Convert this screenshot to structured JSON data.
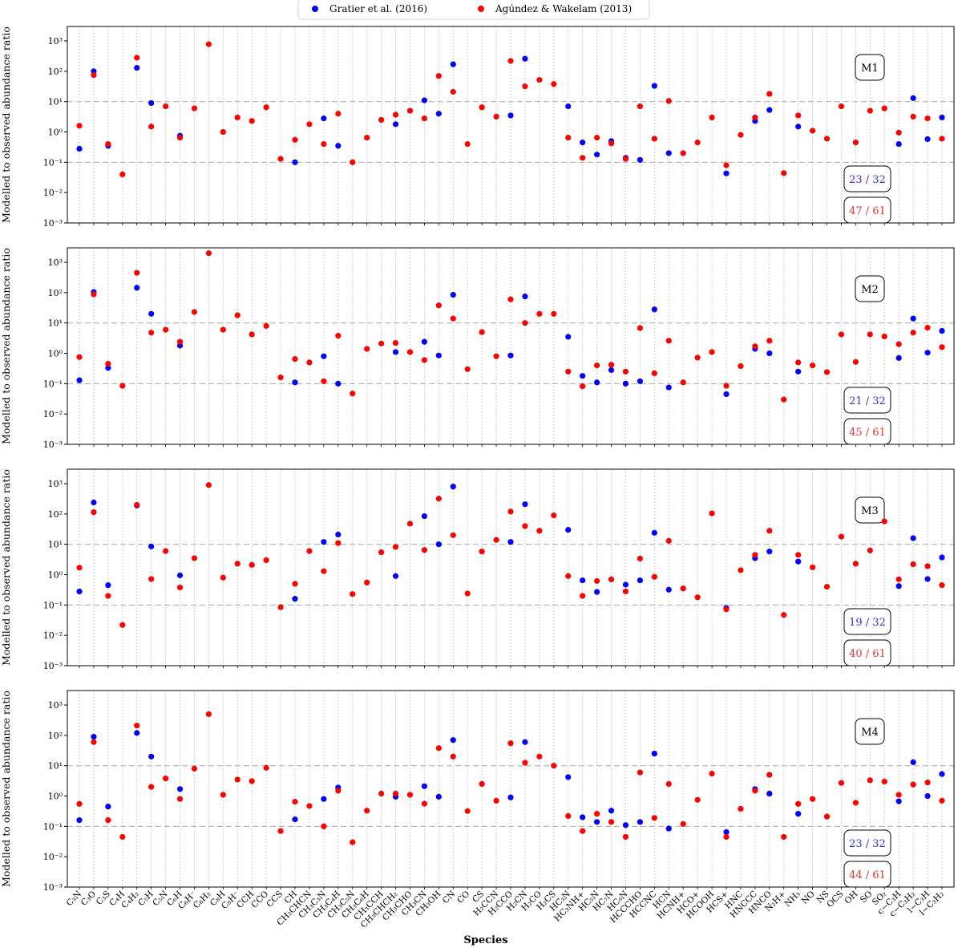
{
  "chart_data": {
    "type": "scatter",
    "xlabel": "Species",
    "ylabel": "Modelled to observed abundance ratio",
    "yscale": "log",
    "ylim": [
      0.001,
      3000
    ],
    "yticks": [
      0.001,
      0.01,
      0.1,
      1,
      10,
      100,
      1000
    ],
    "yticklabels": [
      "10⁻³",
      "10⁻²",
      "10⁻¹",
      "10⁰",
      "10¹",
      "10²",
      "10³"
    ],
    "reference_lines": [
      0.1,
      10
    ],
    "grid": "vertical dotted",
    "legend": {
      "position": "top-center",
      "entries": [
        {
          "label": "Gratier et al. (2016)",
          "color": "#0000ff"
        },
        {
          "label": "Agúndez & Wakelam (2013)",
          "color": "#ff0000"
        }
      ]
    },
    "colors": {
      "gratier": "#0000ff",
      "agundez": "#ff0000",
      "blue_text": "#3333cc",
      "red_text": "#e63333"
    },
    "categories": [
      "C₃N",
      "C₃O",
      "C₃S",
      "C₄H",
      "C₄H₂",
      "C₅H",
      "C₅N",
      "C₆H",
      "C₆H⁻",
      "C₆H₂",
      "C₈H",
      "C₈H⁻",
      "CCH",
      "CCO",
      "CCS",
      "CH",
      "CH₂CHCN",
      "CH₃C₃N",
      "CH₃C₄H",
      "CH₃C₅N",
      "CH₃C₆H",
      "CH₃CCH",
      "CH₃CHCH₂",
      "CH₃CHO",
      "CH₃CN",
      "CH₃OH",
      "CN",
      "CO",
      "CS",
      "H₂CCN",
      "H₂CCO",
      "H₂CN",
      "H₂CO",
      "H₂CS",
      "HC₃N",
      "HC₃NH+",
      "HC₅N",
      "HC₇N",
      "HC₉N",
      "HCCCHO",
      "HCCNC",
      "HCN",
      "HCNH+",
      "HCO+",
      "HCOOH",
      "HCS+",
      "HNC",
      "HNCCC",
      "HNCO",
      "N₂H+",
      "NH₃",
      "NO",
      "NS",
      "OCS",
      "OH",
      "SO",
      "SO₂",
      "c−C₃H",
      "c−C₃H₂",
      "l−C₃H",
      "l−C₃H₂"
    ],
    "panels": [
      {
        "label": "M1",
        "gratier_count": "23 / 32",
        "agundez_count": "47 / 61",
        "gratier": [
          0.28,
          100,
          0.35,
          null,
          130,
          9,
          null,
          0.75,
          null,
          null,
          null,
          null,
          null,
          null,
          null,
          0.1,
          null,
          2.8,
          0.35,
          null,
          null,
          null,
          1.8,
          null,
          11,
          4,
          170,
          null,
          null,
          null,
          3.5,
          260,
          null,
          null,
          7,
          0.45,
          0.18,
          0.5,
          0.14,
          0.12,
          33,
          0.2,
          null,
          null,
          null,
          0.043,
          null,
          2.3,
          5.3,
          null,
          1.5,
          null,
          null,
          null,
          null,
          null,
          null,
          0.4,
          13,
          0.58,
          3
        ],
        "agundez": [
          1.6,
          75,
          0.4,
          0.04,
          280,
          1.5,
          7,
          0.65,
          6,
          780,
          1,
          3,
          2.3,
          6.5,
          0.13,
          0.55,
          1.8,
          0.4,
          4,
          0.1,
          0.65,
          2.5,
          3.7,
          5,
          2.8,
          70,
          21,
          0.4,
          6.5,
          3.2,
          220,
          32,
          52,
          38,
          0.65,
          0.14,
          0.65,
          0.42,
          0.13,
          7,
          0.6,
          10.5,
          0.2,
          0.45,
          3,
          0.08,
          0.8,
          3,
          18,
          0.044,
          3.5,
          1.1,
          0.6,
          7,
          0.45,
          5,
          6,
          0.95,
          3.2,
          2.8,
          0.6
        ]
      },
      {
        "label": "M2",
        "gratier_count": "21 / 32",
        "agundez_count": "45 / 61",
        "gratier": [
          0.13,
          105,
          0.33,
          null,
          145,
          20,
          null,
          1.8,
          null,
          null,
          null,
          null,
          null,
          null,
          null,
          0.11,
          null,
          0.8,
          0.1,
          null,
          null,
          null,
          1.1,
          null,
          2.4,
          0.85,
          85,
          null,
          null,
          null,
          0.85,
          75,
          null,
          null,
          3.5,
          0.18,
          0.11,
          0.28,
          0.1,
          0.12,
          28,
          0.075,
          null,
          null,
          null,
          0.045,
          null,
          1.4,
          1,
          null,
          0.25,
          null,
          null,
          null,
          null,
          null,
          null,
          0.7,
          14,
          1.05,
          5.5
        ],
        "agundez": [
          0.75,
          88,
          0.45,
          0.085,
          450,
          4.8,
          6,
          2.4,
          23,
          2000,
          6,
          18,
          4.2,
          8,
          0.16,
          0.65,
          0.5,
          0.12,
          3.8,
          0.047,
          1.4,
          2.1,
          2.2,
          1.1,
          0.6,
          38,
          14,
          0.3,
          5,
          0.8,
          60,
          10,
          20,
          20,
          0.25,
          0.082,
          0.4,
          0.42,
          0.25,
          6.8,
          0.22,
          2.6,
          0.11,
          0.72,
          1.1,
          0.085,
          0.38,
          1.7,
          2.6,
          0.03,
          0.5,
          0.4,
          0.24,
          4.2,
          0.52,
          4.2,
          3.6,
          2,
          4.8,
          7,
          1.6
        ]
      },
      {
        "label": "M3",
        "gratier_count": "19 / 32",
        "agundez_count": "40 / 61",
        "gratier": [
          0.28,
          240,
          0.45,
          null,
          190,
          8.5,
          null,
          0.95,
          null,
          null,
          null,
          null,
          null,
          null,
          null,
          0.16,
          null,
          12,
          21,
          null,
          null,
          null,
          0.9,
          null,
          85,
          10,
          800,
          null,
          null,
          null,
          12,
          210,
          null,
          null,
          30,
          0.65,
          0.27,
          0.7,
          0.47,
          0.65,
          24,
          0.32,
          null,
          null,
          null,
          0.08,
          null,
          3.5,
          5.8,
          null,
          2.7,
          null,
          null,
          null,
          null,
          null,
          null,
          0.42,
          16,
          0.72,
          3.7
        ],
        "agundez": [
          1.7,
          115,
          0.2,
          0.022,
          200,
          0.72,
          6,
          0.38,
          3.5,
          900,
          0.8,
          2.3,
          2.1,
          3,
          0.085,
          0.5,
          6,
          1.3,
          11,
          0.23,
          0.55,
          5.5,
          8.2,
          48,
          6.5,
          320,
          20,
          0.24,
          5.8,
          14,
          120,
          40,
          28,
          90,
          0.9,
          0.2,
          0.62,
          0.7,
          0.28,
          3.4,
          0.85,
          13,
          0.35,
          0.18,
          105,
          0.072,
          1.4,
          4.5,
          28,
          0.047,
          4.5,
          1.75,
          0.4,
          18,
          2.3,
          6.3,
          57,
          0.7,
          2.2,
          1.9,
          0.45
        ]
      },
      {
        "label": "M4",
        "gratier_count": "23 / 32",
        "agundez_count": "44 / 61",
        "gratier": [
          0.16,
          90,
          0.45,
          null,
          120,
          20,
          null,
          1.7,
          null,
          null,
          null,
          null,
          null,
          null,
          null,
          0.17,
          null,
          0.8,
          1.9,
          null,
          null,
          null,
          0.95,
          null,
          2.1,
          0.95,
          70,
          null,
          null,
          null,
          0.9,
          60,
          null,
          null,
          4.2,
          0.2,
          0.14,
          0.33,
          0.11,
          0.14,
          25,
          0.085,
          null,
          null,
          null,
          0.065,
          null,
          1.7,
          1.2,
          null,
          0.26,
          null,
          null,
          null,
          null,
          null,
          null,
          0.67,
          13,
          1,
          5.3
        ],
        "agundez": [
          0.55,
          60,
          0.16,
          0.045,
          210,
          2,
          3.8,
          0.8,
          8,
          500,
          1.1,
          3.5,
          3.1,
          8.5,
          0.07,
          0.65,
          0.47,
          0.1,
          1.5,
          0.03,
          0.33,
          1.2,
          1.2,
          1.1,
          0.56,
          38,
          20,
          0.32,
          2.5,
          0.7,
          55,
          12.5,
          20,
          10,
          0.22,
          0.07,
          0.26,
          0.14,
          0.045,
          6,
          0.19,
          2.5,
          0.12,
          0.75,
          5.5,
          0.045,
          0.38,
          1.5,
          5,
          0.045,
          0.55,
          0.8,
          0.21,
          2.7,
          0.6,
          3.3,
          3,
          1.1,
          2.4,
          2.8,
          0.7
        ]
      }
    ]
  }
}
